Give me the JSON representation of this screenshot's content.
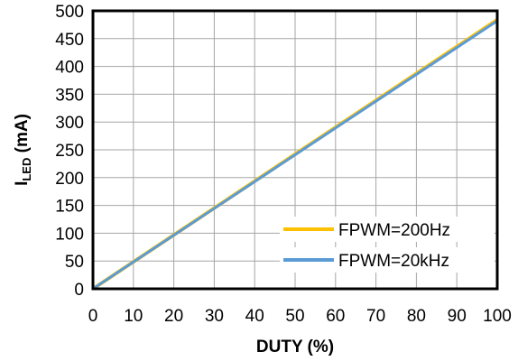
{
  "chart_data": {
    "type": "line",
    "xlabel": "DUTY (%)",
    "ylabel": {
      "main": "I",
      "sub": "LED",
      "unit": " (mA)"
    },
    "xlim": [
      0,
      100
    ],
    "ylim": [
      0,
      500
    ],
    "xticks": [
      0,
      10,
      20,
      30,
      40,
      50,
      60,
      70,
      80,
      90,
      100
    ],
    "yticks": [
      0,
      50,
      100,
      150,
      200,
      250,
      300,
      350,
      400,
      450,
      500
    ],
    "grid": true,
    "legend_position": "bottom-right",
    "series": [
      {
        "name": "FPWM=200Hz",
        "color": "#FFC000",
        "x": [
          0,
          100
        ],
        "y": [
          0,
          484
        ]
      },
      {
        "name": "FPWM=20kHz",
        "color": "#5B9BD5",
        "x": [
          0,
          100
        ],
        "y": [
          0,
          482
        ]
      }
    ]
  }
}
